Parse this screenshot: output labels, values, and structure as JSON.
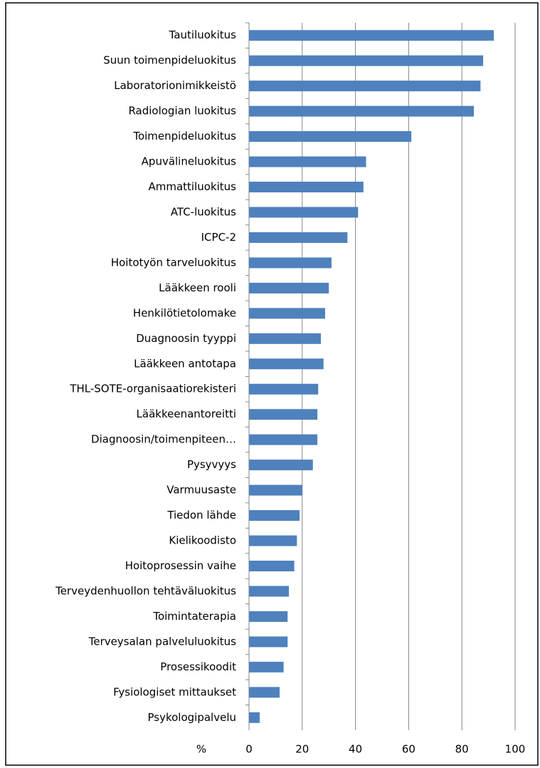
{
  "chart_data": {
    "type": "hbar",
    "x_label": "%",
    "categories": [
      "Tautiluokitus",
      "Suun toimenpideluokitus",
      "Laboratorionimikkeistö",
      "Radiologian luokitus",
      "Toimenpideluokitus",
      "Apuvälineluokitus",
      "Ammattiluokitus",
      "ATC-luokitus",
      "ICPC-2",
      "Hoitotyön tarveluokitus",
      "Lääkkeen rooli",
      "Henkilötietolomake",
      "Duagnoosin tyyppi",
      "Lääkkeen antotapa",
      "THL-SOTE-organisaatiorekisteri",
      "Lääkkeenantoreitti",
      "Diagnoosin/toimenpiteen…",
      "Pysyvyys",
      "Varmuusaste",
      "Tiedon lähde",
      "Kielikoodisto",
      "Hoitoprosessin vaihe",
      "Terveydenhuollon tehtäväluokitus",
      "Toimintaterapia",
      "Terveysalan palveluluokitus",
      "Prosessikoodit",
      "Fysiologiset mittaukset",
      "Psykologipalvelu"
    ],
    "values": [
      92,
      88,
      87,
      84.5,
      61,
      44,
      43,
      41,
      37,
      31,
      30,
      28.6,
      27,
      28,
      26,
      25.7,
      25.7,
      24,
      20,
      19,
      18,
      17,
      15,
      14.5,
      14.5,
      13,
      11.5,
      4
    ],
    "color": "#4f81bd",
    "xlim": [
      0,
      100
    ],
    "xticks": [
      0,
      20,
      40,
      60,
      80,
      100
    ],
    "grid": true
  }
}
